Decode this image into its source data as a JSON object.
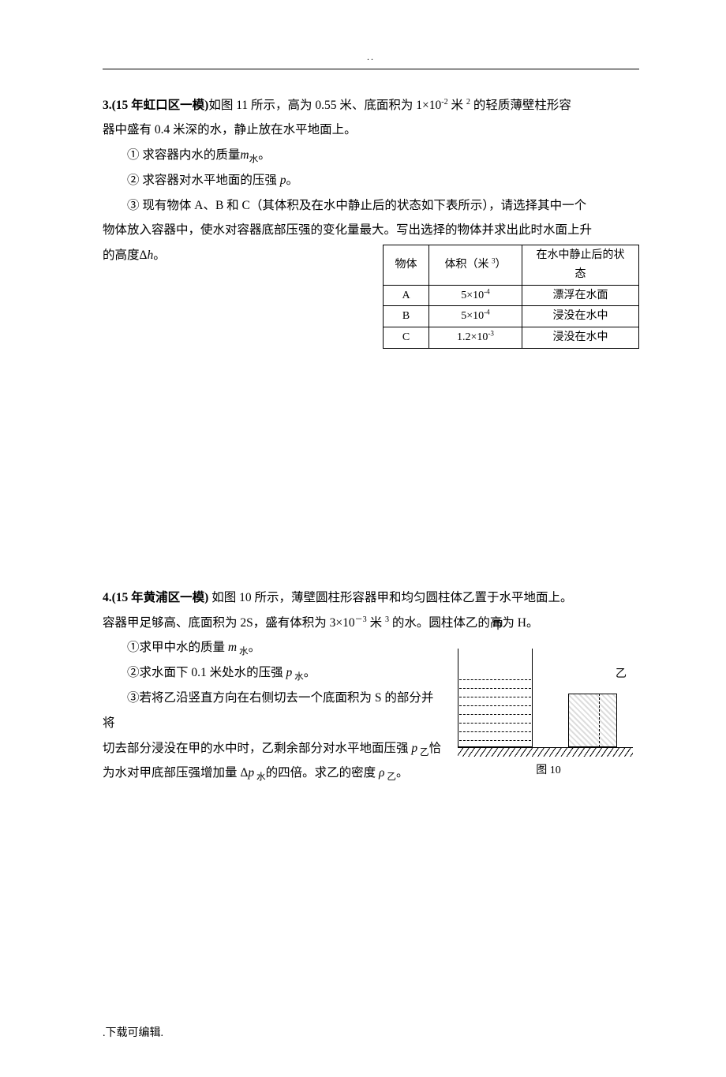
{
  "header": {
    "dots": "..",
    "rule_color": "#000000"
  },
  "p3": {
    "lead_bold": "3.(15 年虹口区一模)",
    "lead_rest_a": "如图 11 所示，高为 0.55 米、底面积为 1×10",
    "lead_sup1": "-2",
    "lead_rest_b": " 米 ",
    "lead_sup2": "2",
    "lead_rest_c": " 的轻质薄壁柱形容",
    "line2": "器中盛有 0.4 米深的水，静止放在水平地面上。",
    "q1_a": "① 求容器内水的质量",
    "q1_i": "m",
    "q1_sub": "水",
    "q1_b": "。",
    "q2_a": "② 求容器对水平地面的压强 ",
    "q2_i": "p",
    "q2_b": "。",
    "q3a": "③ 现有物体 A、B 和 C（其体积及在水中静止后的状态如下表所示），请选择其中一个",
    "q3b": "物体放入容器中，使水对容器底部压强的变化量最大。写出选择的物体并求出此时水面上升",
    "q3c_a": "的高度Δ",
    "q3c_i": "h",
    "q3c_b": "。",
    "table": {
      "headers": [
        "物体",
        "体积（米 ³）",
        "在水中静止后的状态"
      ],
      "h2_pre": "体积（米 ",
      "h2_sup": "3",
      "h2_post": "）",
      "rows": [
        {
          "c1": "A",
          "c2_pre": "5×10",
          "c2_sup": "-4",
          "c3": "漂浮在水面"
        },
        {
          "c1": "B",
          "c2_pre": "5×10",
          "c2_sup": "-4",
          "c3": "浸没在水中"
        },
        {
          "c1": "C",
          "c2_pre": "1.2×10",
          "c2_sup": "-3",
          "c3": "浸没在水中"
        }
      ]
    }
  },
  "p4": {
    "lead_bold": "4.(15 年黄浦区一模)  ",
    "lead_rest": "如图 10 所示，薄壁圆柱形容器甲和均匀圆柱体乙置于水平地面上。",
    "line2_a": "容器甲足够高、底面积为 2S，盛有体积为 3×10",
    "line2_sup": "－3",
    "line2_b": " 米 ",
    "line2_sup2": "3",
    "line2_c": " 的水。圆柱体乙的高为 H。",
    "q1_a": "①求甲中水的质量 ",
    "q1_i": "m",
    "q1_sub": " 水",
    "q1_b": "。",
    "q2_a": "②求水面下 0.1 米处水的压强 ",
    "q2_i": "p",
    "q2_sub": " 水",
    "q2_b": "。",
    "q3a": "③若将乙沿竖直方向在右侧切去一个底面积为 S 的部分并将",
    "q3b_a": "切去部分浸没在甲的水中时，乙剩余部分对水平地面压强 ",
    "q3b_i": "p",
    "q3b_sub": " 乙",
    "q3b_b": "恰",
    "q3c_a": "为水对甲底部压强增加量 Δ",
    "q3c_i1": "p",
    "q3c_sub1": " 水",
    "q3c_b": "的四倍。求乙的密度 ",
    "q3c_i2": "ρ",
    "q3c_sub2": " 乙",
    "q3c_c": "。",
    "fig": {
      "label_jia": "甲",
      "label_yi": "乙",
      "caption": "图 10"
    }
  },
  "footer": {
    "text": ".下载可编辑."
  }
}
